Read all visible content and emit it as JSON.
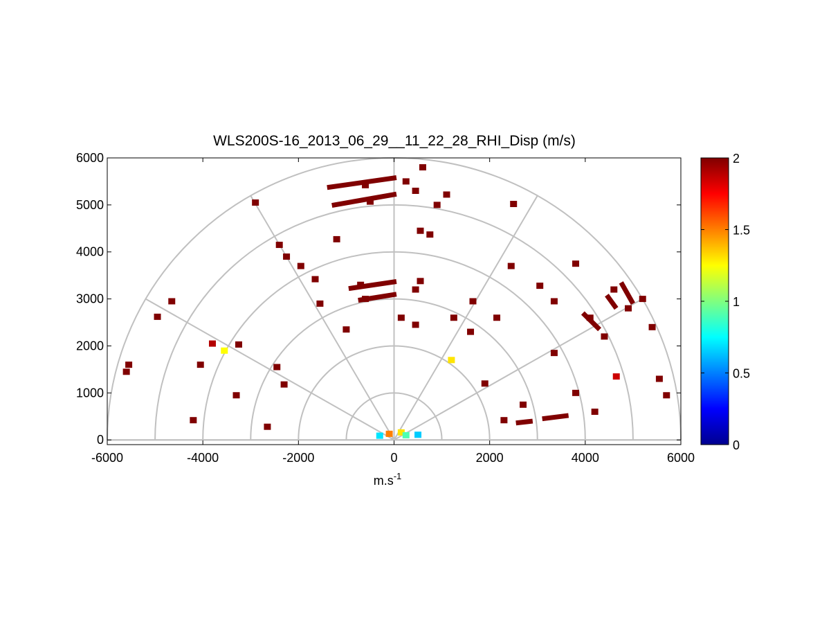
{
  "chart_data": {
    "type": "heatmap",
    "projection": "polar-half (RHI)",
    "title": "WLS200S-16_2013_06_29__11_22_28_RHI_Disp (m/s)",
    "xlabel_base": "m.s",
    "xlabel_sup": "-1",
    "ylabel": "",
    "xlim": [
      -6000,
      6000
    ],
    "ylim": [
      -100,
      6000
    ],
    "xticks": [
      "-6000",
      "-4000",
      "-2000",
      "0",
      "2000",
      "4000",
      "6000"
    ],
    "yticks": [
      "0",
      "1000",
      "2000",
      "3000",
      "4000",
      "5000",
      "6000"
    ],
    "xtick_values": [
      -6000,
      -4000,
      -2000,
      0,
      2000,
      4000,
      6000
    ],
    "ytick_values": [
      0,
      1000,
      2000,
      3000,
      4000,
      5000,
      6000
    ],
    "polar_grid": {
      "range_rings": [
        1000,
        2000,
        3000,
        4000,
        5000,
        6000
      ],
      "spokes_deg": [
        0,
        30,
        60,
        90,
        120,
        150,
        180
      ],
      "grid_color": "#c0c0c0"
    },
    "colorbar": {
      "min": 0,
      "max": 2,
      "ticks": [
        "0",
        "0.5",
        "1",
        "1.5",
        "2"
      ],
      "tick_values": [
        0,
        0.5,
        1,
        1.5,
        2
      ],
      "colormap": "jet"
    },
    "cells": [
      {
        "x": -5550,
        "y": 1600,
        "v": 2
      },
      {
        "x": -5600,
        "y": 1450,
        "v": 2
      },
      {
        "x": -4950,
        "y": 2620,
        "v": 2
      },
      {
        "x": -4650,
        "y": 2950,
        "v": 2
      },
      {
        "x": -4200,
        "y": 420,
        "v": 2
      },
      {
        "x": -4050,
        "y": 1600,
        "v": 2
      },
      {
        "x": -3800,
        "y": 2050,
        "v": 1.9
      },
      {
        "x": -3550,
        "y": 1900,
        "v": 1.25
      },
      {
        "x": -3300,
        "y": 950,
        "v": 2
      },
      {
        "x": -3250,
        "y": 2030,
        "v": 2
      },
      {
        "x": -2650,
        "y": 280,
        "v": 2
      },
      {
        "x": -2450,
        "y": 1550,
        "v": 2
      },
      {
        "x": -2300,
        "y": 1180,
        "v": 2
      },
      {
        "x": -2900,
        "y": 5050,
        "v": 2
      },
      {
        "x": -2400,
        "y": 4150,
        "v": 2
      },
      {
        "x": -2250,
        "y": 3900,
        "v": 2
      },
      {
        "x": -1950,
        "y": 3700,
        "v": 2
      },
      {
        "x": -1650,
        "y": 3420,
        "v": 2
      },
      {
        "x": -1550,
        "y": 2900,
        "v": 2
      },
      {
        "x": -1200,
        "y": 4270,
        "v": 2
      },
      {
        "x": -1000,
        "y": 2350,
        "v": 2
      },
      {
        "x": -600,
        "y": 5420,
        "v": 2
      },
      {
        "x": -500,
        "y": 5070,
        "v": 2
      },
      {
        "x": -700,
        "y": 3300,
        "v": 2
      },
      {
        "x": -600,
        "y": 3000,
        "v": 2
      },
      {
        "x": 250,
        "y": 5500,
        "v": 2
      },
      {
        "x": 450,
        "y": 5300,
        "v": 2
      },
      {
        "x": 600,
        "y": 5800,
        "v": 2
      },
      {
        "x": 1100,
        "y": 5220,
        "v": 2
      },
      {
        "x": 900,
        "y": 5000,
        "v": 2
      },
      {
        "x": 550,
        "y": 4450,
        "v": 2
      },
      {
        "x": 750,
        "y": 4370,
        "v": 2
      },
      {
        "x": 550,
        "y": 3380,
        "v": 2
      },
      {
        "x": 450,
        "y": 3200,
        "v": 2
      },
      {
        "x": 150,
        "y": 2600,
        "v": 2
      },
      {
        "x": 450,
        "y": 2450,
        "v": 2
      },
      {
        "x": 1250,
        "y": 2600,
        "v": 2
      },
      {
        "x": 1600,
        "y": 2300,
        "v": 2
      },
      {
        "x": 1650,
        "y": 2950,
        "v": 2
      },
      {
        "x": 2150,
        "y": 2600,
        "v": 2
      },
      {
        "x": 2450,
        "y": 3700,
        "v": 2
      },
      {
        "x": 2500,
        "y": 5020,
        "v": 2
      },
      {
        "x": 3050,
        "y": 3280,
        "v": 2
      },
      {
        "x": 3350,
        "y": 2950,
        "v": 2
      },
      {
        "x": 3350,
        "y": 1850,
        "v": 2
      },
      {
        "x": 3800,
        "y": 3750,
        "v": 2
      },
      {
        "x": 4100,
        "y": 2600,
        "v": 2
      },
      {
        "x": 4400,
        "y": 2200,
        "v": 2
      },
      {
        "x": 4600,
        "y": 3200,
        "v": 2
      },
      {
        "x": 4650,
        "y": 1350,
        "v": 1.85
      },
      {
        "x": 4900,
        "y": 2800,
        "v": 2
      },
      {
        "x": 5200,
        "y": 3000,
        "v": 2
      },
      {
        "x": 5400,
        "y": 2400,
        "v": 2
      },
      {
        "x": 5550,
        "y": 1300,
        "v": 2
      },
      {
        "x": 5700,
        "y": 950,
        "v": 2
      },
      {
        "x": 4200,
        "y": 600,
        "v": 2
      },
      {
        "x": 3800,
        "y": 1000,
        "v": 2
      },
      {
        "x": 2700,
        "y": 750,
        "v": 2
      },
      {
        "x": 2300,
        "y": 420,
        "v": 2
      },
      {
        "x": 1900,
        "y": 1200,
        "v": 2
      },
      {
        "x": 1200,
        "y": 1700,
        "v": 1.3
      },
      {
        "x": -100,
        "y": 130,
        "v": 1.5
      },
      {
        "x": 150,
        "y": 160,
        "v": 1.3
      },
      {
        "x": 250,
        "y": 100,
        "v": 0.9
      },
      {
        "x": -300,
        "y": 90,
        "v": 0.7
      },
      {
        "x": 500,
        "y": 110,
        "v": 0.65
      }
    ],
    "bands": [
      {
        "x1": -1400,
        "y1": 5370,
        "x2": 50,
        "y2": 5580,
        "v": 2
      },
      {
        "x1": -1300,
        "y1": 4990,
        "x2": 50,
        "y2": 5230,
        "v": 2
      },
      {
        "x1": -950,
        "y1": 3220,
        "x2": 50,
        "y2": 3370,
        "v": 2
      },
      {
        "x1": -750,
        "y1": 2970,
        "x2": 50,
        "y2": 3100,
        "v": 2
      },
      {
        "x1": 3100,
        "y1": 450,
        "x2": 3650,
        "y2": 520,
        "v": 2
      },
      {
        "x1": 2550,
        "y1": 360,
        "x2": 2900,
        "y2": 400,
        "v": 2
      },
      {
        "x1": 3950,
        "y1": 2700,
        "x2": 4300,
        "y2": 2350,
        "v": 2
      },
      {
        "x1": 4450,
        "y1": 3080,
        "x2": 4650,
        "y2": 2800,
        "v": 2
      },
      {
        "x1": 4750,
        "y1": 3350,
        "x2": 5000,
        "y2": 2900,
        "v": 2
      }
    ]
  }
}
